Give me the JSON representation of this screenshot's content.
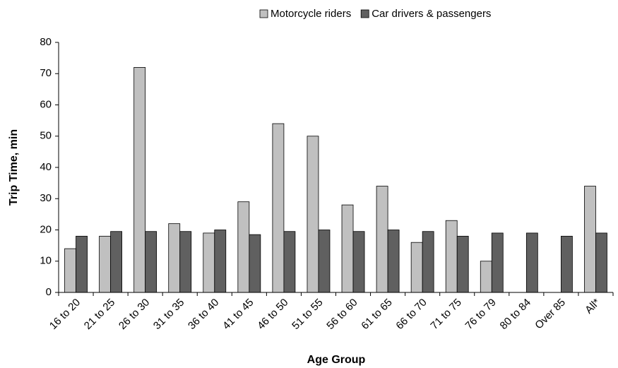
{
  "chart_data": {
    "type": "bar",
    "categories": [
      "16 to 20",
      "21 to 25",
      "26 to 30",
      "31 to 35",
      "36 to 40",
      "41 to 45",
      "46 to 50",
      "51 to 55",
      "56 to 60",
      "61 to 65",
      "66 to 70",
      "71 to 75",
      "76 to 79",
      "80 to 84",
      "Over 85",
      "All*"
    ],
    "series": [
      {
        "name": "Motorcycle riders",
        "color": "#c0c0c0",
        "values": [
          14,
          18,
          72,
          22,
          19,
          29,
          54,
          50,
          28,
          34,
          16,
          23,
          10,
          null,
          null,
          34
        ]
      },
      {
        "name": "Car drivers & passengers",
        "color": "#606060",
        "values": [
          18,
          19.5,
          19.5,
          19.5,
          20,
          18.5,
          19.5,
          20,
          19.5,
          20,
          19.5,
          18,
          19,
          19,
          18,
          19
        ]
      }
    ],
    "x_label": "Age Group",
    "y_label": "Trip Time, min",
    "ylim": [
      0,
      80
    ],
    "yticks": [
      0,
      10,
      20,
      30,
      40,
      50,
      60,
      70,
      80
    ],
    "grid": false,
    "legend": "top"
  }
}
